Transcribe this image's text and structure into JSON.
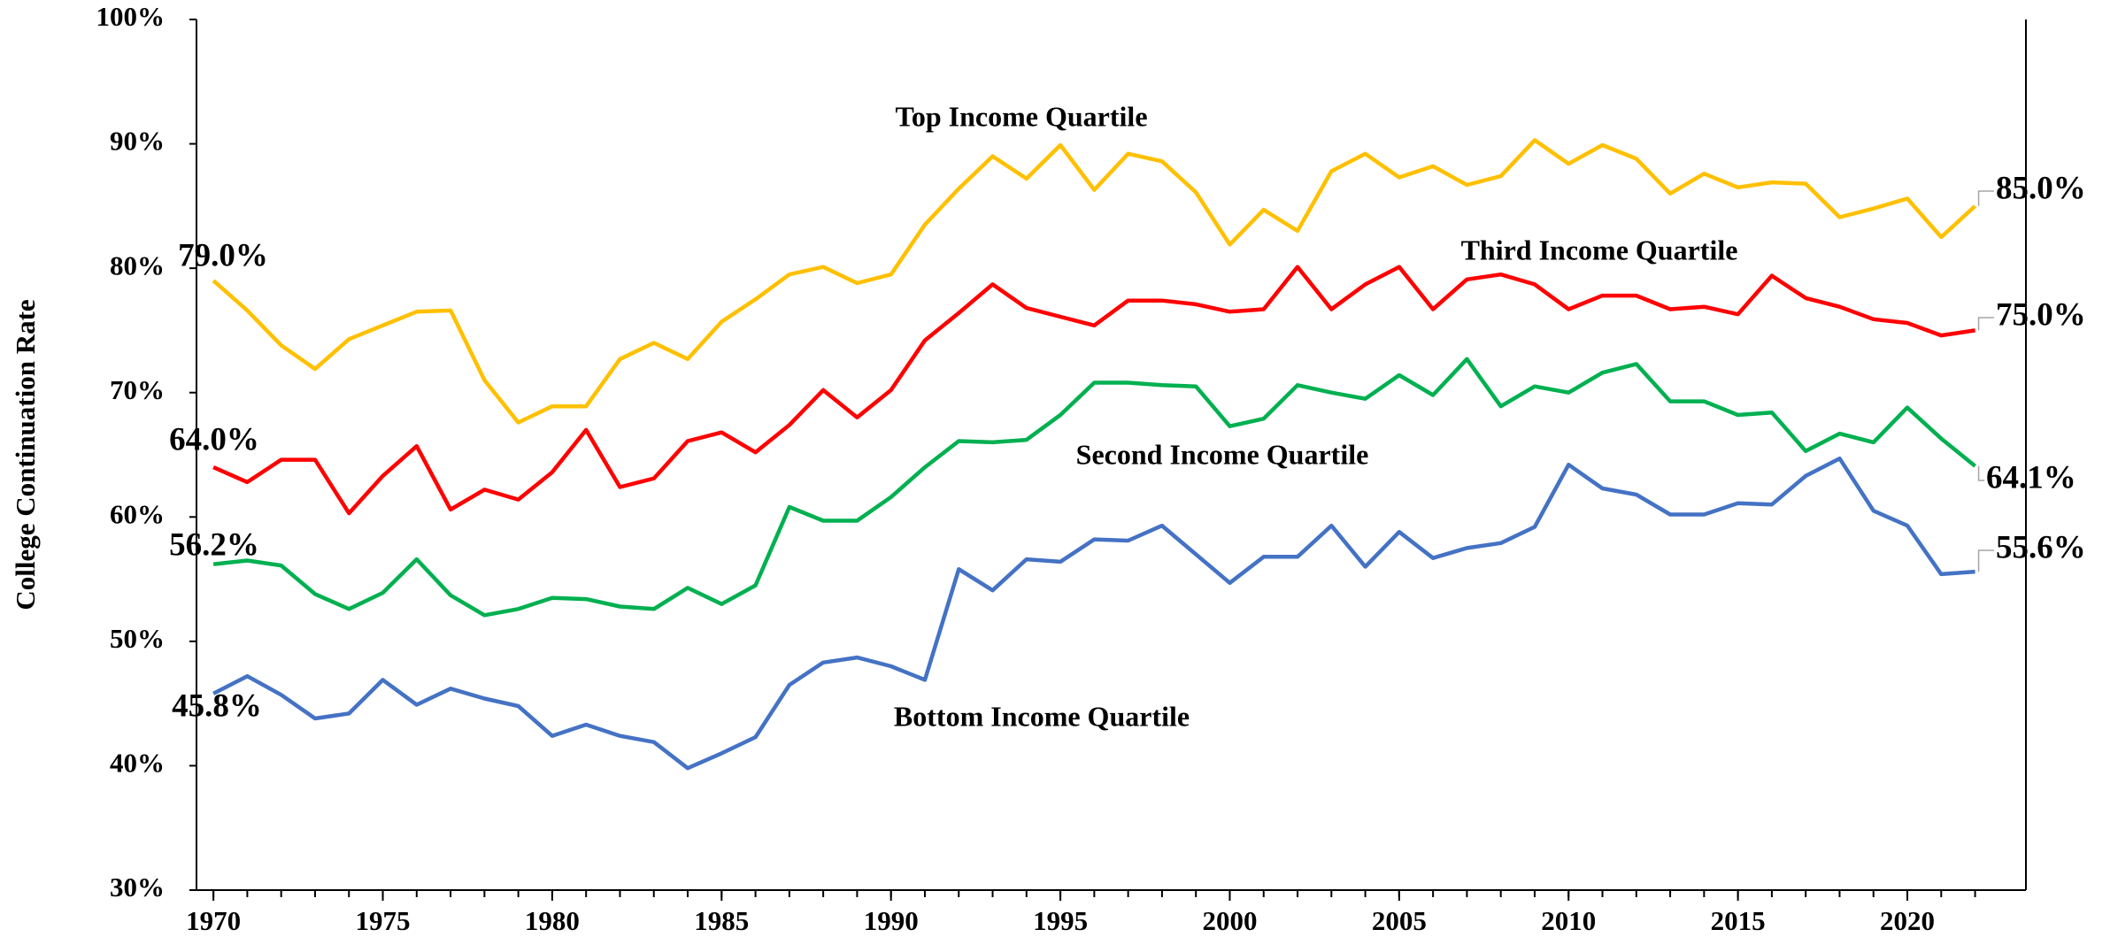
{
  "chart_data": {
    "type": "line",
    "y_label": "College Continuation Rate",
    "x": [
      1970,
      1971,
      1972,
      1973,
      1974,
      1975,
      1976,
      1977,
      1978,
      1979,
      1980,
      1981,
      1982,
      1983,
      1984,
      1985,
      1986,
      1987,
      1988,
      1989,
      1990,
      1991,
      1992,
      1993,
      1994,
      1995,
      1996,
      1997,
      1998,
      1999,
      2000,
      2001,
      2002,
      2003,
      2004,
      2005,
      2006,
      2007,
      2008,
      2009,
      2010,
      2011,
      2012,
      2013,
      2014,
      2015,
      2016,
      2017,
      2018,
      2019,
      2020,
      2021,
      2022
    ],
    "xlim": [
      1969.5,
      2023.5
    ],
    "xticks": [
      1970,
      1975,
      1980,
      1985,
      1990,
      1995,
      2000,
      2005,
      2010,
      2015,
      2020
    ],
    "ylim": [
      30,
      100
    ],
    "yticks": [
      {
        "value": 30,
        "label": "30%"
      },
      {
        "value": 40,
        "label": "40%"
      },
      {
        "value": 50,
        "label": "50%"
      },
      {
        "value": 60,
        "label": "60%"
      },
      {
        "value": 70,
        "label": "70%"
      },
      {
        "value": 80,
        "label": "80%"
      },
      {
        "value": 90,
        "label": "90%"
      },
      {
        "value": 100,
        "label": "100%"
      }
    ],
    "grid": false,
    "series": [
      {
        "name": "Top Income Quartile",
        "color": "#ffc000",
        "values": [
          79.0,
          76.6,
          73.8,
          71.9,
          74.3,
          75.4,
          76.5,
          76.6,
          71.0,
          67.6,
          68.9,
          68.9,
          72.7,
          74.0,
          72.7,
          75.7,
          77.5,
          79.5,
          80.1,
          78.8,
          79.5,
          83.5,
          86.4,
          89.0,
          87.2,
          89.9,
          86.3,
          89.2,
          88.6,
          86.1,
          81.9,
          84.7,
          83.0,
          87.8,
          89.2,
          87.3,
          88.2,
          86.7,
          87.4,
          90.3,
          88.4,
          89.9,
          88.8,
          86.0,
          87.6,
          86.5,
          86.9,
          86.8,
          84.1,
          84.8,
          85.6,
          82.5,
          85.0
        ],
        "value_labels": [
          "79.0%",
          null,
          null,
          null,
          null,
          null,
          null,
          null,
          null,
          null,
          null,
          null,
          null,
          null,
          null,
          null,
          null,
          null,
          null,
          null,
          null,
          null,
          null,
          null,
          null,
          null,
          null,
          null,
          null,
          null,
          null,
          null,
          null,
          null,
          null,
          null,
          null,
          null,
          null,
          null,
          null,
          null,
          null,
          null,
          null,
          null,
          null,
          null,
          null,
          null,
          null,
          null,
          "85.0%"
        ]
      },
      {
        "name": "Third Income Quartile",
        "color": "#ff0000",
        "values": [
          64.0,
          62.8,
          64.6,
          64.6,
          60.3,
          63.3,
          65.7,
          60.6,
          62.2,
          61.4,
          63.6,
          67.0,
          62.4,
          63.1,
          66.1,
          66.8,
          65.2,
          67.4,
          70.2,
          68.0,
          70.2,
          74.2,
          76.4,
          78.7,
          76.8,
          76.1,
          75.4,
          77.4,
          77.4,
          77.1,
          76.5,
          76.7,
          80.1,
          76.7,
          78.7,
          80.1,
          76.7,
          79.1,
          79.5,
          78.7,
          76.7,
          77.8,
          77.8,
          76.7,
          76.9,
          76.3,
          79.4,
          77.6,
          76.9,
          75.9,
          75.6,
          74.6,
          75.0
        ],
        "value_labels": [
          "64.0%",
          null,
          null,
          null,
          null,
          null,
          null,
          null,
          null,
          null,
          null,
          null,
          null,
          null,
          null,
          null,
          null,
          null,
          null,
          null,
          null,
          null,
          null,
          null,
          null,
          null,
          null,
          null,
          null,
          null,
          null,
          null,
          null,
          null,
          null,
          null,
          null,
          null,
          null,
          null,
          null,
          null,
          null,
          null,
          null,
          null,
          null,
          null,
          null,
          null,
          null,
          null,
          "75.0%"
        ]
      },
      {
        "name": "Second Income Quartile",
        "color": "#00b050",
        "values": [
          56.2,
          56.5,
          56.1,
          53.8,
          52.6,
          53.9,
          56.6,
          53.7,
          52.1,
          52.6,
          53.5,
          53.4,
          52.8,
          52.6,
          54.3,
          53.0,
          54.5,
          60.8,
          59.7,
          59.7,
          61.6,
          64.0,
          66.1,
          66.0,
          66.2,
          68.2,
          70.8,
          70.8,
          70.6,
          70.5,
          67.3,
          67.9,
          70.6,
          70.0,
          69.5,
          71.4,
          69.8,
          72.7,
          68.9,
          70.5,
          70.0,
          71.6,
          72.3,
          69.3,
          69.3,
          68.2,
          68.4,
          65.3,
          66.7,
          66.0,
          68.8,
          66.3,
          64.1
        ],
        "value_labels": [
          "56.2%",
          null,
          null,
          null,
          null,
          null,
          null,
          null,
          null,
          null,
          null,
          null,
          null,
          null,
          null,
          null,
          null,
          null,
          null,
          null,
          null,
          null,
          null,
          null,
          null,
          null,
          null,
          null,
          null,
          null,
          null,
          null,
          null,
          null,
          null,
          null,
          null,
          null,
          null,
          null,
          null,
          null,
          null,
          null,
          null,
          null,
          null,
          null,
          null,
          null,
          null,
          null,
          "64.1%"
        ]
      },
      {
        "name": "Bottom Income Quartile",
        "color": "#4472c4",
        "values": [
          45.8,
          47.2,
          45.7,
          43.8,
          44.2,
          46.9,
          44.9,
          46.2,
          45.4,
          44.8,
          42.4,
          43.3,
          42.4,
          41.9,
          39.8,
          41.0,
          42.3,
          46.5,
          48.3,
          48.7,
          48.0,
          46.9,
          55.8,
          54.1,
          56.6,
          56.4,
          58.2,
          58.1,
          59.3,
          57.0,
          54.7,
          56.8,
          56.8,
          59.3,
          56.0,
          58.8,
          56.7,
          57.5,
          57.9,
          59.2,
          64.2,
          62.3,
          61.8,
          60.2,
          60.2,
          61.1,
          61.0,
          63.3,
          64.7,
          60.5,
          59.3,
          55.4,
          55.6
        ],
        "value_labels": [
          "45.8%",
          null,
          null,
          null,
          null,
          null,
          null,
          null,
          null,
          null,
          null,
          null,
          null,
          null,
          null,
          null,
          null,
          null,
          null,
          null,
          null,
          null,
          null,
          null,
          null,
          null,
          null,
          null,
          null,
          null,
          null,
          null,
          null,
          null,
          null,
          null,
          null,
          null,
          null,
          null,
          null,
          null,
          null,
          null,
          null,
          null,
          null,
          null,
          null,
          null,
          null,
          null,
          "55.6%"
        ]
      }
    ]
  }
}
